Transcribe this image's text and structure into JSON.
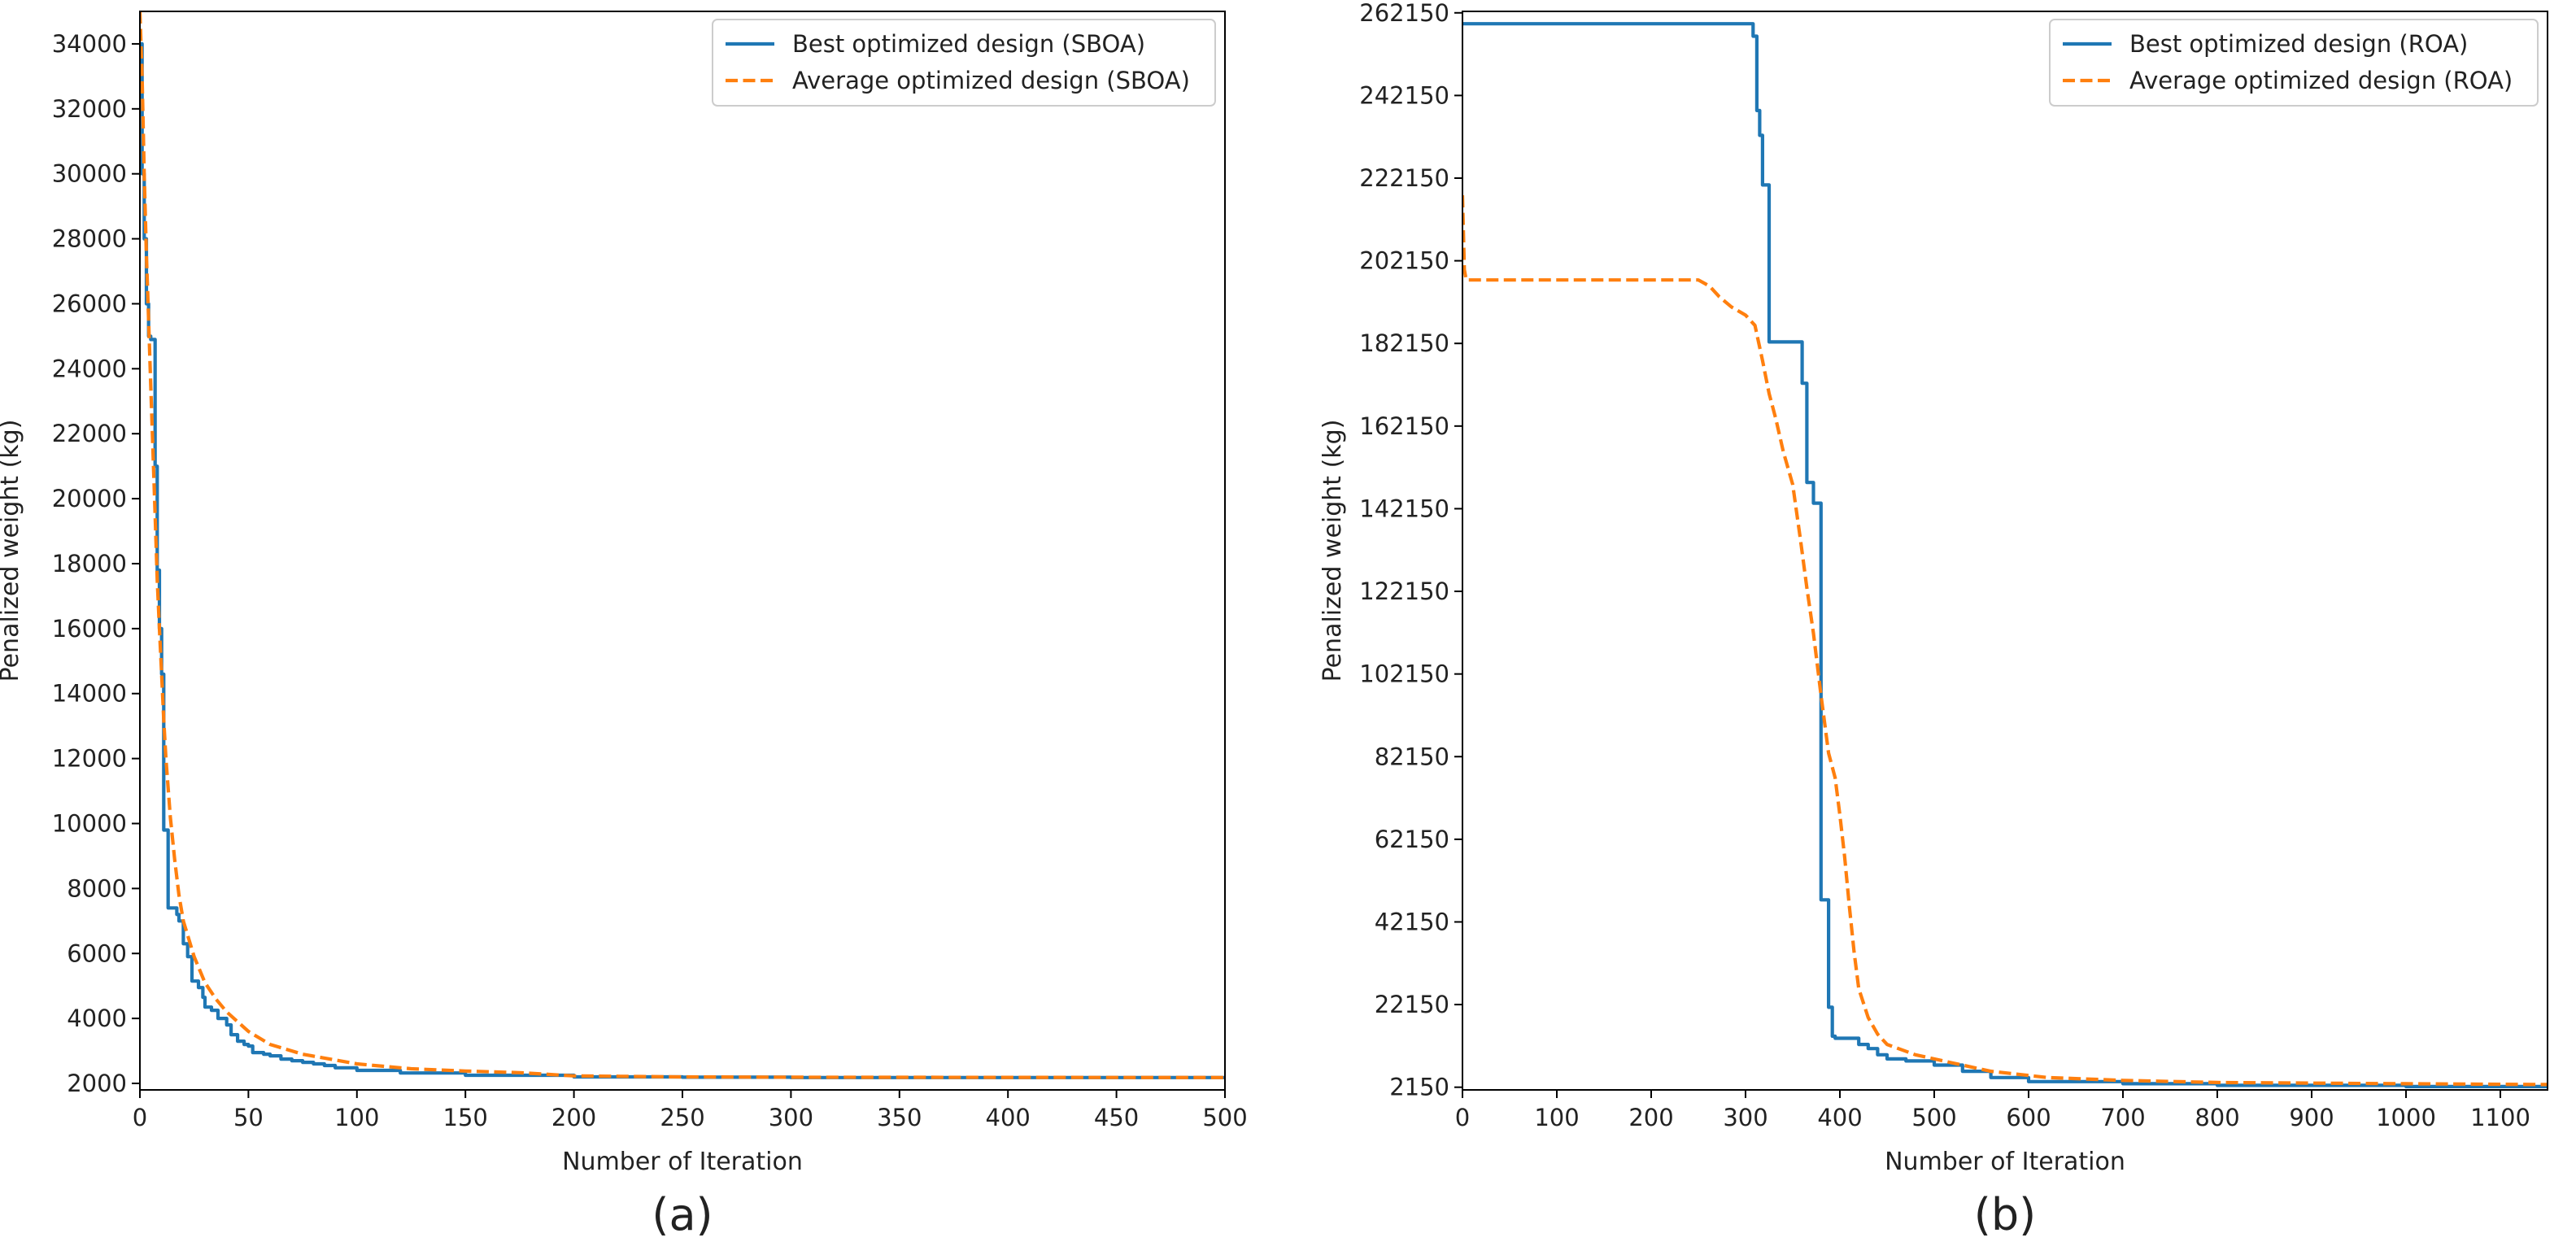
{
  "chart_data": [
    {
      "type": "line",
      "panel_label": "(a)",
      "xlabel": "Number of Iteration",
      "ylabel": "Penalized weight (kg)",
      "xlim": [
        0,
        500
      ],
      "ylim": [
        1800,
        35000
      ],
      "xticks": [
        0,
        50,
        100,
        150,
        200,
        250,
        300,
        350,
        400,
        450,
        500
      ],
      "yticks": [
        2000,
        4000,
        6000,
        8000,
        10000,
        12000,
        14000,
        16000,
        18000,
        20000,
        22000,
        24000,
        26000,
        28000,
        30000,
        32000,
        34000
      ],
      "legend_position": "top-right",
      "series": [
        {
          "name": "Best optimized design (SBOA)",
          "color": "#1f77b4",
          "style": "solid",
          "step": true,
          "x": [
            0,
            1,
            2,
            3,
            4,
            5,
            7,
            8,
            9,
            10,
            11,
            12,
            13,
            17,
            18,
            20,
            22,
            24,
            27,
            29,
            30,
            33,
            36,
            40,
            42,
            45,
            48,
            50,
            52,
            57,
            60,
            65,
            70,
            75,
            80,
            85,
            90,
            100,
            120,
            150,
            200,
            250,
            300,
            400,
            500
          ],
          "y": [
            34000,
            30000,
            28000,
            26000,
            25000,
            24900,
            21000,
            17800,
            16000,
            14600,
            9800,
            9800,
            7400,
            7200,
            7000,
            6300,
            5900,
            5150,
            4950,
            4650,
            4350,
            4250,
            4000,
            3800,
            3500,
            3300,
            3200,
            3150,
            2950,
            2900,
            2850,
            2750,
            2700,
            2650,
            2600,
            2550,
            2480,
            2400,
            2320,
            2250,
            2200,
            2190,
            2180,
            2180,
            2180
          ]
        },
        {
          "name": "Average optimized design (SBOA)",
          "color": "#ff7f0e",
          "style": "dashed",
          "step": false,
          "x": [
            0,
            1,
            2,
            3,
            4,
            5,
            6,
            7,
            8,
            9,
            10,
            11,
            12,
            14,
            16,
            18,
            20,
            25,
            30,
            35,
            40,
            50,
            60,
            75,
            100,
            125,
            150,
            175,
            200,
            250,
            300,
            400,
            500
          ],
          "y": [
            35000,
            33000,
            30000,
            27500,
            25500,
            23500,
            21500,
            19500,
            17500,
            16000,
            14600,
            13200,
            12000,
            10200,
            8900,
            7800,
            7000,
            5900,
            5100,
            4600,
            4200,
            3600,
            3200,
            2900,
            2600,
            2450,
            2380,
            2330,
            2230,
            2200,
            2190,
            2185,
            2180
          ]
        }
      ]
    },
    {
      "type": "line",
      "panel_label": "(b)",
      "xlabel": "Number of Iteration",
      "ylabel": "Penalized weight (kg)",
      "xlim": [
        0,
        1150
      ],
      "ylim": [
        1500,
        262500
      ],
      "xticks": [
        0,
        100,
        200,
        300,
        400,
        500,
        600,
        700,
        800,
        900,
        1000,
        1100
      ],
      "yticks": [
        2150,
        22150,
        42150,
        62150,
        82150,
        102150,
        122150,
        142150,
        162150,
        182150,
        202150,
        222150,
        242150,
        262150
      ],
      "legend_position": "top-right",
      "series": [
        {
          "name": "Best optimized design (ROA)",
          "color": "#1f77b4",
          "style": "solid",
          "step": true,
          "x": [
            0,
            308,
            312,
            315,
            318,
            325,
            330,
            360,
            365,
            372,
            380,
            388,
            392,
            395,
            400,
            410,
            420,
            430,
            440,
            450,
            470,
            500,
            530,
            560,
            600,
            700,
            800,
            1000,
            1150
          ],
          "y": [
            259500,
            256500,
            238500,
            232500,
            220500,
            182500,
            182500,
            172500,
            148500,
            143500,
            47500,
            21500,
            14500,
            14000,
            14000,
            14000,
            12500,
            11500,
            10000,
            9000,
            8500,
            7500,
            6000,
            4500,
            3500,
            3000,
            2600,
            2300,
            2150
          ]
        },
        {
          "name": "Average optimized design (ROA)",
          "color": "#ff7f0e",
          "style": "dashed",
          "step": false,
          "x": [
            0,
            2,
            4,
            250,
            262,
            272,
            285,
            300,
            310,
            318,
            325,
            332,
            340,
            350,
            358,
            365,
            372,
            380,
            388,
            395,
            400,
            405,
            410,
            415,
            420,
            430,
            440,
            450,
            480,
            520,
            560,
            620,
            700,
            800,
            1000,
            1150
          ],
          "y": [
            218000,
            200000,
            197500,
            197500,
            196000,
            193500,
            191000,
            189000,
            186500,
            178000,
            170000,
            164000,
            156000,
            148000,
            135000,
            123000,
            112000,
            97000,
            83000,
            77000,
            68000,
            58000,
            46000,
            35000,
            26000,
            19000,
            15000,
            12500,
            10000,
            8000,
            6000,
            4500,
            3800,
            3300,
            3000,
            2800
          ]
        }
      ]
    }
  ]
}
